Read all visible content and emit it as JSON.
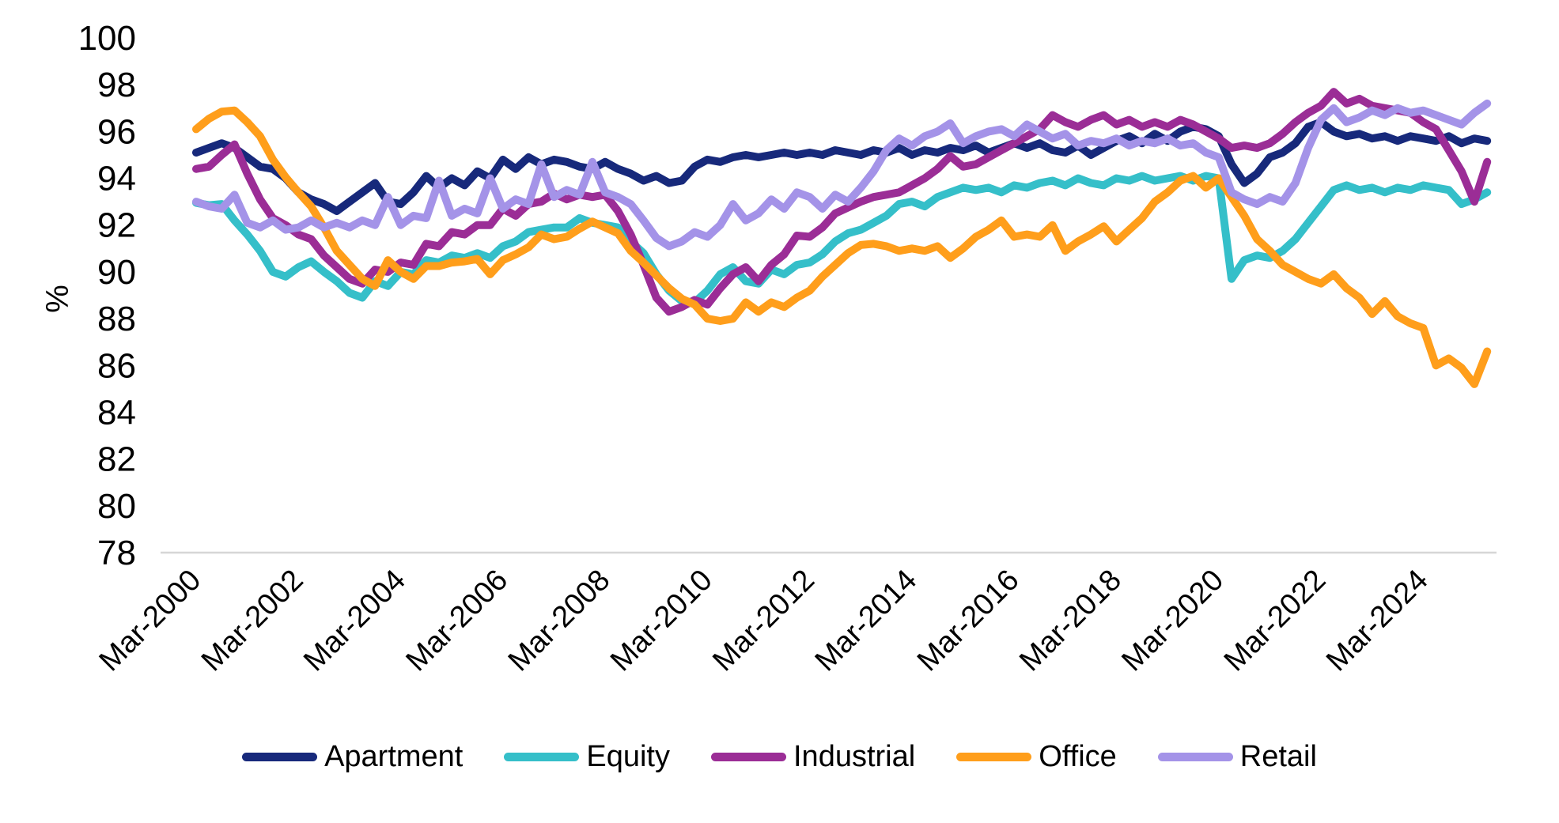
{
  "chart_data": {
    "type": "line",
    "title": "",
    "ylabel": "%",
    "ylim": [
      78,
      100
    ],
    "y_ticks": [
      100,
      98,
      96,
      94,
      92,
      90,
      88,
      86,
      84,
      82,
      80,
      78
    ],
    "x_frequency": "quarterly",
    "x_range": [
      "Mar-2000",
      "Jun-2025"
    ],
    "x_tick_every_n_points": 8,
    "x_tick_labels": [
      "Mar-2000",
      "Mar-2002",
      "Mar-2004",
      "Mar-2006",
      "Mar-2008",
      "Mar-2010",
      "Mar-2012",
      "Mar-2014",
      "Mar-2016",
      "Mar-2018",
      "Mar-2020",
      "Mar-2022",
      "Mar-2024"
    ],
    "grid": "baseline-only",
    "legend_position": "bottom",
    "axis_color": "#d6d6d6",
    "text_color": "#000000",
    "series": [
      {
        "name": "Apartment",
        "color": "#17297B",
        "values": [
          95.1,
          95.3,
          95.5,
          95.3,
          94.9,
          94.5,
          94.4,
          94.0,
          93.4,
          93.1,
          92.9,
          92.6,
          93.0,
          93.4,
          93.8,
          93.0,
          92.9,
          93.4,
          94.1,
          93.6,
          94.0,
          93.7,
          94.3,
          94.0,
          94.8,
          94.4,
          94.9,
          94.6,
          94.8,
          94.7,
          94.5,
          94.4,
          94.7,
          94.4,
          94.2,
          93.9,
          94.1,
          93.8,
          93.9,
          94.5,
          94.8,
          94.7,
          94.9,
          95.0,
          94.9,
          95.0,
          95.1,
          95.0,
          95.1,
          95.0,
          95.2,
          95.1,
          95.0,
          95.2,
          95.1,
          95.3,
          95.0,
          95.2,
          95.1,
          95.3,
          95.2,
          95.4,
          95.1,
          95.3,
          95.5,
          95.3,
          95.5,
          95.2,
          95.1,
          95.4,
          95.0,
          95.3,
          95.6,
          95.8,
          95.5,
          95.9,
          95.6,
          96.0,
          96.2,
          96.1,
          95.8,
          94.6,
          93.8,
          94.2,
          94.9,
          95.1,
          95.5,
          96.2,
          96.4,
          96.0,
          95.8,
          95.9,
          95.7,
          95.8,
          95.6,
          95.8,
          95.7,
          95.6,
          95.8,
          95.5,
          95.7,
          95.6
        ]
      },
      {
        "name": "Equity",
        "color": "#35BFC9",
        "values": [
          92.95,
          92.85,
          92.9,
          92.2,
          91.6,
          90.9,
          90.0,
          89.8,
          90.2,
          90.45,
          90.0,
          89.6,
          89.1,
          88.9,
          89.6,
          89.4,
          90.0,
          89.9,
          90.5,
          90.4,
          90.7,
          90.6,
          90.8,
          90.6,
          91.1,
          91.3,
          91.7,
          91.8,
          91.9,
          91.9,
          92.3,
          92.1,
          92.0,
          91.9,
          91.3,
          90.8,
          89.9,
          89.2,
          88.75,
          88.7,
          89.2,
          89.9,
          90.2,
          89.6,
          89.5,
          90.1,
          89.9,
          90.3,
          90.4,
          90.75,
          91.3,
          91.65,
          91.8,
          92.1,
          92.4,
          92.9,
          93.0,
          92.8,
          93.2,
          93.4,
          93.6,
          93.5,
          93.6,
          93.4,
          93.7,
          93.6,
          93.8,
          93.9,
          93.7,
          94.0,
          93.8,
          93.7,
          94.0,
          93.9,
          94.1,
          93.9,
          94.0,
          94.1,
          93.9,
          94.1,
          94.0,
          89.7,
          90.5,
          90.7,
          90.6,
          90.9,
          91.4,
          92.1,
          92.8,
          93.5,
          93.7,
          93.5,
          93.6,
          93.4,
          93.6,
          93.5,
          93.7,
          93.6,
          93.5,
          92.9,
          93.1,
          93.4
        ]
      },
      {
        "name": "Industrial",
        "color": "#9B2D96",
        "values": [
          94.4,
          94.5,
          95.0,
          95.45,
          94.2,
          93.1,
          92.3,
          92.0,
          91.6,
          91.4,
          90.7,
          90.2,
          89.7,
          89.5,
          90.1,
          90.0,
          90.4,
          90.3,
          91.2,
          91.1,
          91.7,
          91.6,
          92.0,
          92.0,
          92.7,
          92.4,
          92.9,
          93.0,
          93.35,
          93.1,
          93.3,
          93.2,
          93.3,
          92.6,
          91.6,
          90.3,
          88.9,
          88.3,
          88.5,
          88.8,
          88.6,
          89.3,
          89.9,
          90.2,
          89.6,
          90.3,
          90.75,
          91.55,
          91.5,
          91.9,
          92.5,
          92.75,
          93.0,
          93.2,
          93.3,
          93.4,
          93.7,
          94.0,
          94.4,
          94.95,
          94.5,
          94.6,
          94.9,
          95.2,
          95.5,
          95.8,
          96.1,
          96.7,
          96.4,
          96.2,
          96.5,
          96.7,
          96.3,
          96.5,
          96.2,
          96.4,
          96.2,
          96.5,
          96.3,
          96.0,
          95.7,
          95.3,
          95.4,
          95.3,
          95.5,
          95.9,
          96.4,
          96.8,
          97.1,
          97.7,
          97.2,
          97.4,
          97.1,
          97.0,
          96.9,
          96.8,
          96.4,
          96.1,
          95.2,
          94.3,
          93.0,
          94.7
        ]
      },
      {
        "name": "Office",
        "color": "#FF9E1B",
        "values": [
          96.1,
          96.55,
          96.85,
          96.9,
          96.4,
          95.8,
          94.8,
          94.05,
          93.4,
          92.8,
          91.9,
          90.9,
          90.3,
          89.7,
          89.4,
          90.5,
          90.0,
          89.7,
          90.25,
          90.25,
          90.4,
          90.45,
          90.55,
          89.9,
          90.5,
          90.75,
          91.05,
          91.6,
          91.4,
          91.5,
          91.85,
          92.15,
          91.9,
          91.65,
          90.9,
          90.4,
          89.85,
          89.3,
          88.85,
          88.6,
          88.0,
          87.9,
          88.0,
          88.7,
          88.3,
          88.7,
          88.5,
          88.9,
          89.2,
          89.8,
          90.3,
          90.8,
          91.15,
          91.2,
          91.1,
          90.9,
          91.0,
          90.9,
          91.1,
          90.6,
          91.0,
          91.5,
          91.8,
          92.2,
          91.5,
          91.6,
          91.5,
          92.0,
          90.9,
          91.3,
          91.6,
          91.95,
          91.3,
          91.8,
          92.3,
          93.0,
          93.4,
          93.9,
          94.1,
          93.6,
          94.0,
          93.2,
          92.4,
          91.4,
          90.9,
          90.3,
          90.0,
          89.7,
          89.5,
          89.9,
          89.3,
          88.9,
          88.2,
          88.75,
          88.1,
          87.8,
          87.6,
          86.0,
          86.3,
          85.9,
          85.2,
          86.6
        ]
      },
      {
        "name": "Retail",
        "color": "#A493E8",
        "values": [
          93.0,
          92.8,
          92.7,
          93.3,
          92.1,
          91.9,
          92.2,
          91.8,
          91.9,
          92.2,
          91.9,
          92.1,
          91.9,
          92.2,
          92.0,
          93.2,
          92.0,
          92.4,
          92.3,
          93.9,
          92.4,
          92.7,
          92.5,
          94.0,
          92.7,
          93.1,
          92.9,
          94.6,
          93.2,
          93.5,
          93.3,
          94.7,
          93.4,
          93.2,
          92.9,
          92.2,
          91.45,
          91.1,
          91.3,
          91.7,
          91.5,
          92.0,
          92.9,
          92.2,
          92.5,
          93.1,
          92.7,
          93.4,
          93.2,
          92.7,
          93.3,
          93.0,
          93.6,
          94.3,
          95.2,
          95.7,
          95.4,
          95.8,
          96.0,
          96.35,
          95.5,
          95.8,
          96.0,
          96.1,
          95.8,
          96.3,
          96.0,
          95.7,
          95.9,
          95.4,
          95.6,
          95.5,
          95.7,
          95.4,
          95.6,
          95.5,
          95.7,
          95.4,
          95.5,
          95.1,
          94.9,
          93.4,
          93.1,
          92.9,
          93.2,
          93.0,
          93.8,
          95.3,
          96.5,
          97.0,
          96.4,
          96.6,
          96.9,
          96.7,
          97.0,
          96.8,
          96.9,
          96.7,
          96.5,
          96.3,
          96.8,
          97.2
        ]
      }
    ]
  }
}
